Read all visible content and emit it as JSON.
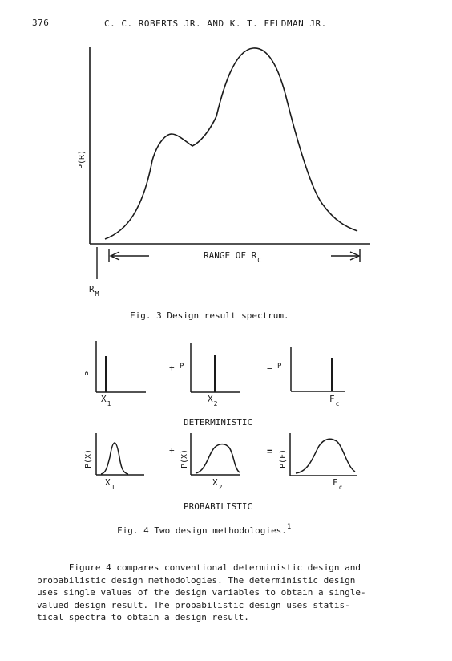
{
  "header": {
    "page_number": "376",
    "running_title": "C. C. ROBERTS JR. AND K. T. FELDMAN JR."
  },
  "fig3": {
    "ylabel": "P(R)",
    "xlabel_main": "RANGE OF R",
    "xlabel_sub": "C",
    "marker_main": "R",
    "marker_sub": "M",
    "caption": "Fig. 3  Design result spectrum."
  },
  "fig4": {
    "det_row": {
      "plus": "+",
      "equals": "=",
      "p_label_1": "P",
      "p_label_2": "P",
      "p_label_3": "P",
      "x1_main": "X",
      "x1_sub": "1",
      "x2_main": "X",
      "x2_sub": "2",
      "fc_main": "F",
      "fc_sub": "c",
      "title": "DETERMINISTIC"
    },
    "prob_row": {
      "plus": "+",
      "equals": "=",
      "y1": "P(X)",
      "y2": "P(X)",
      "y3": "P(F)",
      "x1_main": "X",
      "x1_sub": "1",
      "x2_main": "X",
      "x2_sub": "2",
      "fc_main": "F",
      "fc_sub": "c",
      "title": "PROBABILISTIC"
    },
    "caption": "Fig. 4  Two design methodologies.",
    "caption_sup": "1"
  },
  "body_text": {
    "lines": [
      "      Figure 4 compares conventional deterministic design and",
      "probabilistic design methodologies.  The deterministic design",
      "uses single values of the design variables to obtain a single-",
      "valued design result.  The probabilistic design uses statis-",
      "tical spectra to obtain a design result."
    ]
  }
}
